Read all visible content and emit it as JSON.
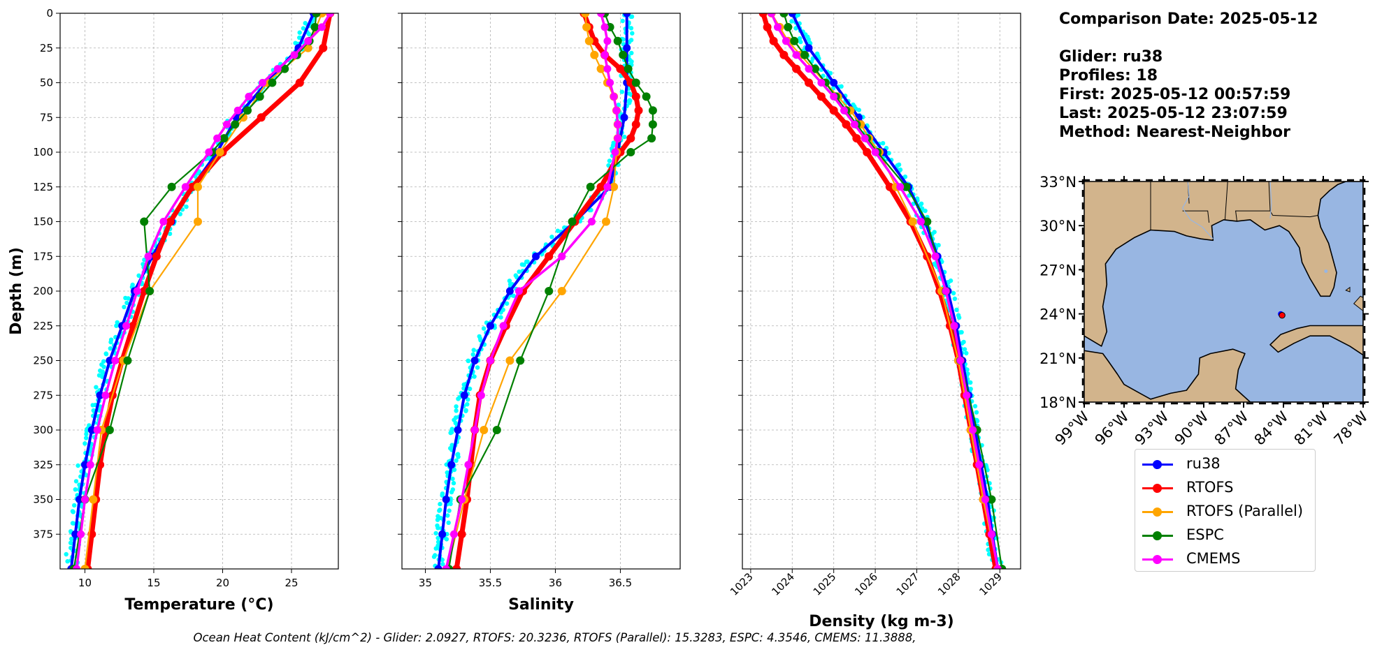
{
  "info": {
    "comparison_date": "Comparison Date: 2025-05-12",
    "glider": "Glider: ru38",
    "profiles": "Profiles: 18",
    "first": "First: 2025-05-12 00:57:59",
    "last": "Last: 2025-05-12 23:07:59",
    "method": "Method: Nearest-Neighbor"
  },
  "footer": "Ocean Heat Content (kJ/cm^2) - Glider: 2.0927,  RTOFS: 20.3236,  RTOFS (Parallel): 15.3283,  ESPC: 4.3546,  CMEMS: 11.3888,",
  "legend": [
    {
      "label": "ru38",
      "color": "#0000ff"
    },
    {
      "label": "RTOFS",
      "color": "#ff0000"
    },
    {
      "label": "RTOFS (Parallel)",
      "color": "#ffa500"
    },
    {
      "label": "ESPC",
      "color": "#008000"
    },
    {
      "label": "CMEMS",
      "color": "#ff00ff"
    }
  ],
  "colors": {
    "glider_raw": "#00ffff",
    "land": "#d2b48c",
    "ocean": "#98b6e2",
    "grid": "#b0b0b0"
  },
  "chart_data": [
    {
      "type": "line",
      "xlabel": "Temperature (°C)",
      "ylabel": "Depth (m)",
      "xlim": [
        8.2,
        28.4
      ],
      "ylim": [
        400,
        0
      ],
      "xticks": [
        10,
        15,
        20,
        25
      ],
      "yticks": [
        0,
        25,
        50,
        75,
        100,
        125,
        150,
        175,
        200,
        225,
        250,
        275,
        300,
        325,
        350,
        375
      ],
      "grid": true,
      "series": [
        {
          "name": "ru38",
          "depth": [
            0,
            25,
            50,
            75,
            100,
            125,
            150,
            175,
            200,
            225,
            250,
            275,
            300,
            325,
            350,
            375,
            400
          ],
          "values": [
            26.6,
            25.5,
            23.2,
            21.0,
            19.6,
            17.8,
            16.3,
            14.9,
            13.6,
            12.7,
            11.8,
            11.1,
            10.5,
            10.0,
            9.6,
            9.3,
            9.0
          ]
        },
        {
          "name": "RTOFS",
          "depth": [
            0,
            25,
            50,
            75,
            100,
            125,
            150,
            175,
            200,
            225,
            250,
            275,
            300,
            325,
            350,
            375,
            400
          ],
          "values": [
            27.8,
            27.3,
            25.6,
            22.8,
            20.0,
            17.8,
            16.2,
            15.2,
            14.3,
            13.5,
            12.7,
            12.0,
            11.5,
            11.1,
            10.8,
            10.5,
            10.2
          ]
        },
        {
          "name": "RTOFS (Parallel)",
          "depth": [
            0,
            25,
            50,
            75,
            100,
            125,
            150,
            200,
            250,
            300,
            350,
            400
          ],
          "values": [
            27.2,
            26.2,
            23.2,
            21.5,
            19.8,
            18.2,
            18.2,
            14.7,
            12.8,
            11.2,
            10.6,
            10.0
          ]
        },
        {
          "name": "ESPC",
          "depth": [
            0,
            10,
            20,
            30,
            40,
            50,
            60,
            70,
            80,
            90,
            100,
            125,
            150,
            200,
            250,
            300,
            350,
            400
          ],
          "values": [
            26.8,
            26.7,
            26.3,
            25.4,
            24.5,
            23.6,
            22.7,
            21.8,
            20.9,
            20.1,
            19.2,
            16.3,
            14.3,
            14.7,
            13.1,
            11.8,
            10.0,
            9.2
          ]
        },
        {
          "name": "CMEMS",
          "depth": [
            0,
            10,
            20,
            30,
            40,
            50,
            60,
            70,
            80,
            90,
            100,
            125,
            150,
            175,
            200,
            225,
            250,
            275,
            300,
            325,
            350,
            375,
            400
          ],
          "values": [
            27.8,
            27.2,
            26.2,
            25.2,
            24.0,
            22.9,
            21.9,
            21.1,
            20.3,
            19.6,
            19.0,
            17.3,
            15.7,
            14.6,
            13.8,
            13.0,
            12.2,
            11.5,
            10.9,
            10.4,
            10.0,
            9.7,
            9.4
          ]
        }
      ]
    },
    {
      "type": "line",
      "xlabel": "Salinity",
      "xlim": [
        34.82,
        36.96
      ],
      "ylim": [
        400,
        0
      ],
      "xticks": [
        35.0,
        35.5,
        36.0,
        36.5
      ],
      "yticks": [
        0,
        25,
        50,
        75,
        100,
        125,
        150,
        175,
        200,
        225,
        250,
        275,
        300,
        325,
        350,
        375
      ],
      "grid": true,
      "series": [
        {
          "name": "ru38",
          "depth": [
            0,
            25,
            50,
            75,
            100,
            125,
            150,
            175,
            200,
            225,
            250,
            275,
            300,
            325,
            350,
            375,
            400
          ],
          "values": [
            36.55,
            36.55,
            36.55,
            36.53,
            36.48,
            36.42,
            36.15,
            35.85,
            35.65,
            35.5,
            35.38,
            35.3,
            35.25,
            35.2,
            35.16,
            35.13,
            35.1
          ]
        },
        {
          "name": "RTOFS",
          "depth": [
            0,
            10,
            20,
            30,
            40,
            50,
            60,
            70,
            80,
            90,
            100,
            125,
            150,
            175,
            200,
            225,
            250,
            275,
            300,
            325,
            350,
            375,
            400
          ],
          "values": [
            36.22,
            36.26,
            36.3,
            36.38,
            36.5,
            36.58,
            36.62,
            36.64,
            36.62,
            36.58,
            36.5,
            36.35,
            36.15,
            35.95,
            35.75,
            35.62,
            35.5,
            35.42,
            35.38,
            35.35,
            35.32,
            35.28,
            35.24
          ]
        },
        {
          "name": "RTOFS (Parallel)",
          "depth": [
            0,
            10,
            20,
            30,
            40,
            50,
            60,
            70,
            80,
            90,
            100,
            125,
            150,
            200,
            250,
            300,
            350,
            400
          ],
          "values": [
            36.23,
            36.24,
            36.26,
            36.3,
            36.35,
            36.4,
            36.45,
            36.47,
            36.48,
            36.48,
            36.47,
            36.45,
            36.39,
            36.05,
            35.65,
            35.45,
            35.3,
            35.17
          ]
        },
        {
          "name": "ESPC",
          "depth": [
            0,
            10,
            20,
            30,
            40,
            50,
            60,
            70,
            80,
            90,
            100,
            125,
            150,
            200,
            250,
            300,
            350,
            400
          ],
          "values": [
            36.38,
            36.42,
            36.48,
            36.52,
            36.56,
            36.62,
            36.7,
            36.75,
            36.75,
            36.74,
            36.58,
            36.27,
            36.13,
            35.95,
            35.73,
            35.55,
            35.27,
            35.18
          ]
        },
        {
          "name": "CMEMS",
          "depth": [
            0,
            10,
            20,
            30,
            40,
            50,
            60,
            70,
            80,
            90,
            100,
            125,
            150,
            175,
            200,
            225,
            250,
            275,
            300,
            325,
            350,
            375,
            400
          ],
          "values": [
            36.35,
            36.38,
            36.4,
            36.38,
            36.4,
            36.42,
            36.45,
            36.47,
            36.48,
            36.48,
            36.46,
            36.4,
            36.28,
            36.05,
            35.72,
            35.6,
            35.5,
            35.43,
            35.38,
            35.33,
            35.28,
            35.22,
            35.16
          ]
        }
      ]
    },
    {
      "type": "line",
      "xlabel": "Density (kg m-3)",
      "xlim": [
        1022.8,
        1029.5
      ],
      "ylim": [
        400,
        0
      ],
      "xticks": [
        1023,
        1024,
        1025,
        1026,
        1027,
        1028,
        1029
      ],
      "yticks": [
        0,
        25,
        50,
        75,
        100,
        125,
        150,
        175,
        200,
        225,
        250,
        275,
        300,
        325,
        350,
        375
      ],
      "grid": true,
      "series": [
        {
          "name": "ru38",
          "depth": [
            0,
            25,
            50,
            75,
            100,
            125,
            150,
            175,
            200,
            225,
            250,
            275,
            300,
            325,
            350,
            375,
            400
          ],
          "values": [
            1024.0,
            1024.4,
            1025.0,
            1025.6,
            1026.2,
            1026.8,
            1027.2,
            1027.5,
            1027.75,
            1027.95,
            1028.1,
            1028.25,
            1028.4,
            1028.55,
            1028.7,
            1028.82,
            1028.95
          ]
        },
        {
          "name": "RTOFS",
          "depth": [
            0,
            10,
            20,
            30,
            40,
            50,
            60,
            70,
            80,
            90,
            100,
            125,
            150,
            175,
            200,
            225,
            250,
            275,
            300,
            325,
            350,
            375,
            400
          ],
          "values": [
            1023.3,
            1023.4,
            1023.55,
            1023.8,
            1024.1,
            1024.4,
            1024.7,
            1025.0,
            1025.3,
            1025.55,
            1025.8,
            1026.35,
            1026.85,
            1027.25,
            1027.55,
            1027.8,
            1028.0,
            1028.15,
            1028.3,
            1028.45,
            1028.6,
            1028.75,
            1028.9
          ]
        },
        {
          "name": "RTOFS (Parallel)",
          "depth": [
            0,
            10,
            20,
            30,
            40,
            50,
            60,
            70,
            80,
            90,
            100,
            125,
            150,
            200,
            250,
            300,
            350,
            400
          ],
          "values": [
            1023.5,
            1023.7,
            1023.9,
            1024.2,
            1024.5,
            1024.8,
            1025.1,
            1025.4,
            1025.65,
            1025.85,
            1026.1,
            1026.5,
            1026.9,
            1027.6,
            1028.0,
            1028.3,
            1028.6,
            1028.95
          ]
        },
        {
          "name": "ESPC",
          "depth": [
            0,
            10,
            20,
            30,
            40,
            50,
            60,
            70,
            80,
            90,
            100,
            125,
            150,
            200,
            250,
            300,
            350,
            400
          ],
          "values": [
            1023.8,
            1023.9,
            1024.05,
            1024.3,
            1024.55,
            1024.8,
            1025.05,
            1025.3,
            1025.55,
            1025.8,
            1026.05,
            1026.75,
            1027.25,
            1027.7,
            1028.05,
            1028.45,
            1028.8,
            1029.05
          ]
        },
        {
          "name": "CMEMS",
          "depth": [
            0,
            10,
            20,
            30,
            40,
            50,
            60,
            70,
            80,
            90,
            100,
            125,
            150,
            175,
            200,
            225,
            250,
            275,
            300,
            325,
            350,
            375,
            400
          ],
          "values": [
            1023.5,
            1023.65,
            1023.85,
            1024.1,
            1024.4,
            1024.7,
            1025.0,
            1025.25,
            1025.5,
            1025.75,
            1026.0,
            1026.6,
            1027.1,
            1027.45,
            1027.7,
            1027.9,
            1028.05,
            1028.2,
            1028.35,
            1028.5,
            1028.65,
            1028.8,
            1028.95
          ]
        }
      ]
    }
  ],
  "map": {
    "lon_range": [
      -99,
      -78
    ],
    "lat_range": [
      18,
      33
    ],
    "lat_ticks": [
      "33°N",
      "30°N",
      "27°N",
      "24°N",
      "21°N",
      "18°N"
    ],
    "lon_ticks": [
      "99°W",
      "96°W",
      "93°W",
      "90°W",
      "87°W",
      "84°W",
      "81°W",
      "78°W"
    ],
    "glider_position": {
      "lon": -84.1,
      "lat": 23.9
    }
  }
}
